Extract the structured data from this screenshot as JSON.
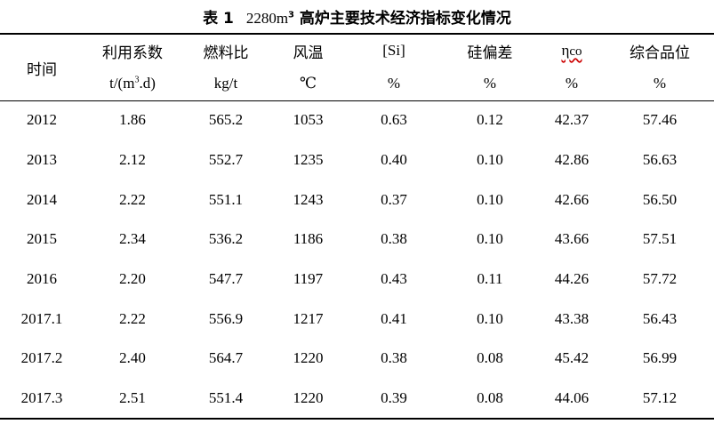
{
  "caption": {
    "number": "表 1",
    "title_prefix": "2280m",
    "title_sup": "3",
    "title_suffix": " 高炉主要技术经济指标变化情况"
  },
  "columns": [
    {
      "name": "时间",
      "unit": ""
    },
    {
      "name": "利用系数",
      "unit_prefix": "t/(m",
      "unit_sup": "3",
      "unit_suffix": ".d)"
    },
    {
      "name": "燃料比",
      "unit": "kg/t"
    },
    {
      "name": "风温",
      "unit": "℃"
    },
    {
      "name": "[Si]",
      "unit": "%"
    },
    {
      "name": "硅偏差",
      "unit": "%"
    },
    {
      "name_main": "η",
      "name_sub": "co",
      "unit": "%"
    },
    {
      "name": "综合品位",
      "unit": "%"
    }
  ],
  "rows": [
    [
      "2012",
      "1.86",
      "565.2",
      "1053",
      "0.63",
      "0.12",
      "42.37",
      "57.46"
    ],
    [
      "2013",
      "2.12",
      "552.7",
      "1235",
      "0.40",
      "0.10",
      "42.86",
      "56.63"
    ],
    [
      "2014",
      "2.22",
      "551.1",
      "1243",
      "0.37",
      "0.10",
      "42.66",
      "56.50"
    ],
    [
      "2015",
      "2.34",
      "536.2",
      "1186",
      "0.38",
      "0.10",
      "43.66",
      "57.51"
    ],
    [
      "2016",
      "2.20",
      "547.7",
      "1197",
      "0.43",
      "0.11",
      "44.26",
      "57.72"
    ],
    [
      "2017.1",
      "2.22",
      "556.9",
      "1217",
      "0.41",
      "0.10",
      "43.38",
      "56.43"
    ],
    [
      "2017.2",
      "2.40",
      "564.7",
      "1220",
      "0.38",
      "0.08",
      "45.42",
      "56.99"
    ],
    [
      "2017.3",
      "2.51",
      "551.4",
      "1220",
      "0.39",
      "0.08",
      "44.06",
      "57.12"
    ]
  ]
}
